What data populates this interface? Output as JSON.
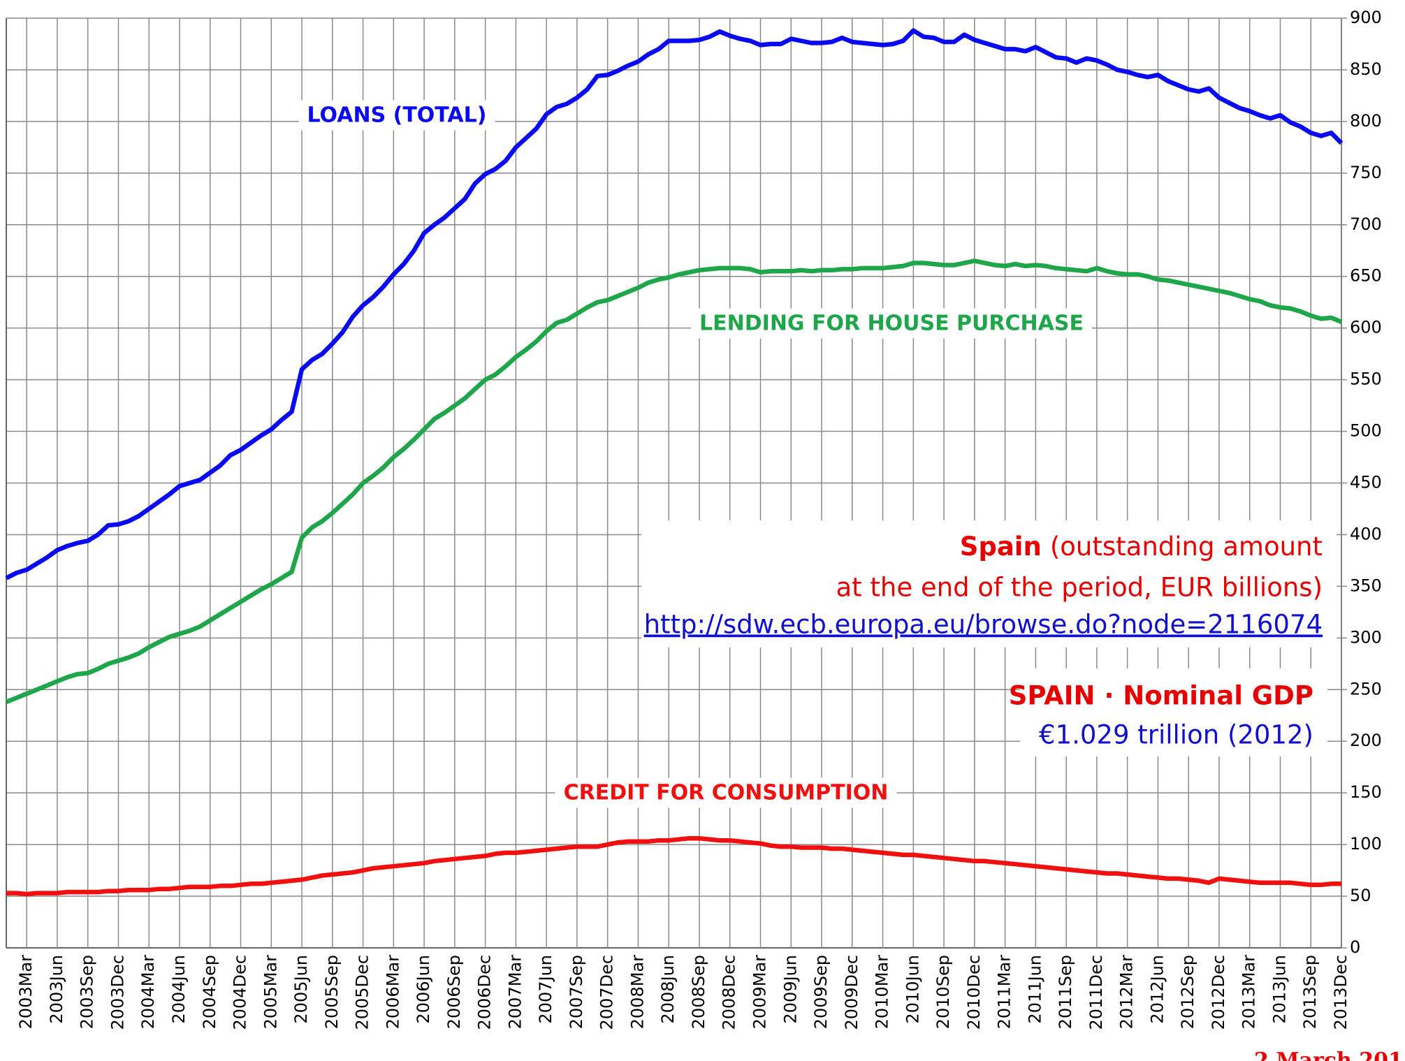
{
  "chart_data": {
    "type": "line",
    "categories": [
      null,
      null,
      "2003Mar",
      null,
      null,
      "2003Jun",
      null,
      null,
      "2003Sep",
      null,
      null,
      "2003Dec",
      null,
      null,
      "2004Mar",
      null,
      null,
      "2004Jun",
      null,
      null,
      "2004Sep",
      null,
      null,
      "2004Dec",
      null,
      null,
      "2005Mar",
      null,
      null,
      "2005Jun",
      null,
      null,
      "2005Sep",
      null,
      null,
      "2005Dec",
      null,
      null,
      "2006Mar",
      null,
      null,
      "2006Jun",
      null,
      null,
      "2006Sep",
      null,
      null,
      "2006Dec",
      null,
      null,
      "2007Mar",
      null,
      null,
      "2007Jun",
      null,
      null,
      "2007Sep",
      null,
      null,
      "2007Dec",
      null,
      null,
      "2008Mar",
      null,
      null,
      "2008Jun",
      null,
      null,
      "2008Sep",
      null,
      null,
      "2008Dec",
      null,
      null,
      "2009Mar",
      null,
      null,
      "2009Jun",
      null,
      null,
      "2009Sep",
      null,
      null,
      "2009Dec",
      null,
      null,
      "2010Mar",
      null,
      null,
      "2010Jun",
      null,
      null,
      "2010Sep",
      null,
      null,
      "2010Dec",
      null,
      null,
      "2011Mar",
      null,
      null,
      "2011Jun",
      null,
      null,
      "2011Sep",
      null,
      null,
      "2011Dec",
      null,
      null,
      "2012Mar",
      null,
      null,
      "2012Jun",
      null,
      null,
      "2012Sep",
      null,
      null,
      "2012Dec",
      null,
      null,
      "2013Mar",
      null,
      null,
      "2013Jun",
      null,
      null,
      "2013Sep",
      null,
      null,
      "2013Dec"
    ],
    "series": [
      {
        "name": "LOANS (TOTAL)",
        "color": "#0a0af0",
        "values": [
          358,
          363,
          366,
          372,
          378,
          385,
          389,
          392,
          394,
          400,
          409,
          410,
          413,
          418,
          425,
          432,
          439,
          447,
          450,
          453,
          460,
          467,
          477,
          482,
          489,
          496,
          502,
          511,
          519,
          560,
          569,
          575,
          585,
          596,
          611,
          622,
          630,
          640,
          652,
          662,
          675,
          692,
          700,
          707,
          716,
          725,
          740,
          749,
          754,
          762,
          775,
          784,
          793,
          807,
          814,
          817,
          823,
          831,
          844,
          845,
          849,
          854,
          858,
          865,
          870,
          878,
          878,
          878,
          879,
          882,
          887,
          883,
          880,
          878,
          874,
          875,
          875,
          880,
          878,
          876,
          876,
          877,
          881,
          877,
          876,
          875,
          874,
          875,
          878,
          888,
          882,
          881,
          877,
          877,
          884,
          879,
          876,
          873,
          870,
          870,
          868,
          872,
          867,
          862,
          861,
          857,
          861,
          859,
          855,
          850,
          848,
          845,
          843,
          845,
          839,
          835,
          831,
          829,
          832,
          823,
          818,
          813,
          810,
          806,
          803,
          806,
          799,
          795,
          789,
          786,
          789,
          779
        ]
      },
      {
        "name": "LENDING FOR HOUSE PURCHASE",
        "color": "#1fa64b",
        "values": [
          238,
          242,
          246,
          250,
          254,
          258,
          262,
          265,
          266,
          270,
          275,
          278,
          281,
          285,
          291,
          296,
          301,
          304,
          307,
          311,
          317,
          323,
          329,
          335,
          341,
          347,
          352,
          358,
          364,
          397,
          407,
          413,
          421,
          430,
          439,
          450,
          457,
          465,
          475,
          483,
          492,
          502,
          512,
          518,
          525,
          532,
          541,
          550,
          555,
          563,
          572,
          579,
          587,
          597,
          605,
          608,
          614,
          620,
          625,
          627,
          631,
          635,
          639,
          644,
          647,
          649,
          652,
          654,
          656,
          657,
          658,
          658,
          658,
          657,
          654,
          655,
          655,
          655,
          656,
          655,
          656,
          656,
          657,
          657,
          658,
          658,
          658,
          659,
          660,
          663,
          663,
          662,
          661,
          661,
          663,
          665,
          663,
          661,
          660,
          662,
          660,
          661,
          660,
          658,
          657,
          656,
          655,
          658,
          655,
          653,
          652,
          652,
          650,
          647,
          646,
          644,
          642,
          640,
          638,
          636,
          634,
          631,
          628,
          626,
          622,
          620,
          619,
          616,
          612,
          609,
          610,
          606
        ]
      },
      {
        "name": "CREDIT FOR CONSUMPTION",
        "color": "#f01010",
        "values": [
          53,
          53,
          52,
          53,
          53,
          53,
          54,
          54,
          54,
          54,
          55,
          55,
          56,
          56,
          56,
          57,
          57,
          58,
          59,
          59,
          59,
          60,
          60,
          61,
          62,
          62,
          63,
          64,
          65,
          66,
          68,
          70,
          71,
          72,
          73,
          75,
          77,
          78,
          79,
          80,
          81,
          82,
          84,
          85,
          86,
          87,
          88,
          89,
          91,
          92,
          92,
          93,
          94,
          95,
          96,
          97,
          98,
          98,
          98,
          100,
          102,
          103,
          103,
          103,
          104,
          104,
          105,
          106,
          106,
          105,
          104,
          104,
          103,
          102,
          101,
          99,
          98,
          98,
          97,
          97,
          97,
          96,
          96,
          95,
          94,
          93,
          92,
          91,
          90,
          90,
          89,
          88,
          87,
          86,
          85,
          84,
          84,
          83,
          82,
          81,
          80,
          79,
          78,
          77,
          76,
          75,
          74,
          73,
          72,
          72,
          71,
          70,
          69,
          68,
          67,
          67,
          66,
          65,
          63,
          67,
          66,
          65,
          64,
          63,
          63,
          63,
          63,
          62,
          61,
          61,
          62,
          62
        ]
      }
    ],
    "ylim": [
      0,
      900
    ],
    "yticks": [
      0,
      50,
      100,
      150,
      200,
      250,
      300,
      350,
      400,
      450,
      500,
      550,
      600,
      650,
      700,
      750,
      800,
      850,
      900
    ],
    "grid": true,
    "annotations": {
      "info_title": "Spain",
      "info_line1": "(outstanding amount",
      "info_line2": "at the end of the period, EUR billions)",
      "link": "http://sdw.ecb.europa.eu/browse.do?node=2116074",
      "gdp_title": "SPAIN · Nominal GDP",
      "gdp_value": "€1.029 trillion (2012)",
      "date": "2 March 201"
    }
  }
}
